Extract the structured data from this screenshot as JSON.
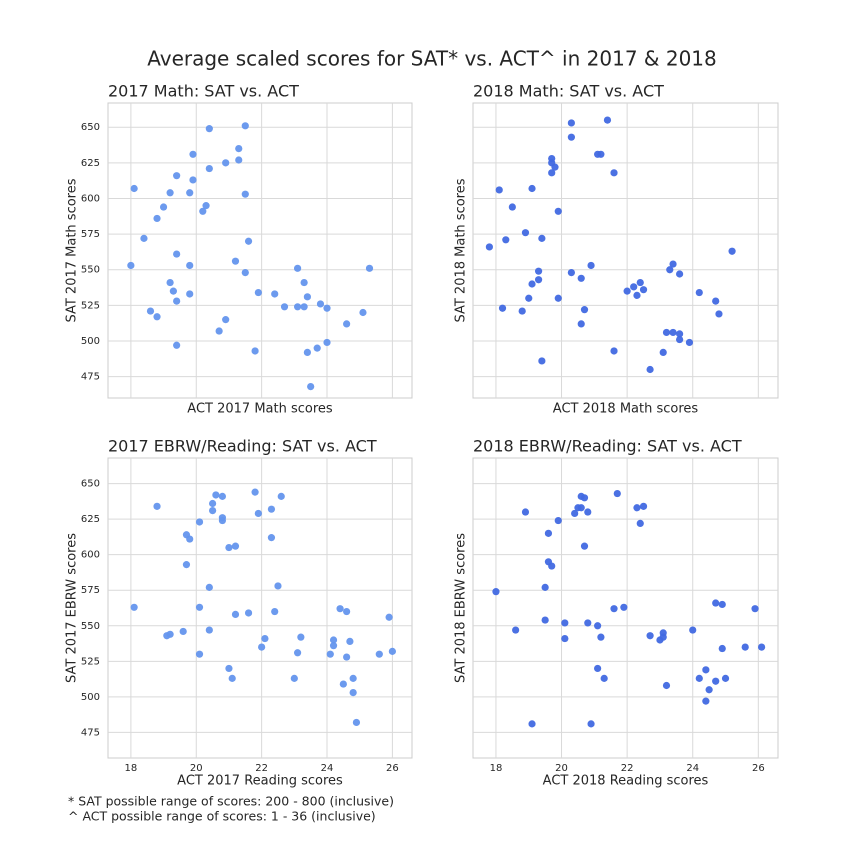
{
  "title": "Average scaled scores for SAT* vs. ACT^ in 2017 & 2018",
  "notes": [
    "* SAT possible range of scores: 200 - 800 (inclusive)",
    "^ ACT possible range of scores: 1 - 36 (inclusive)"
  ],
  "chart_data": [
    {
      "type": "scatter",
      "title": "2017 Math: SAT vs. ACT",
      "x_label": "ACT 2017 Math scores",
      "y_label": "SAT 2017 Math scores",
      "color": "#6495ed",
      "grid": true,
      "xtick_labels": false,
      "ytick_labels": true,
      "xlim": [
        17.3,
        26.6
      ],
      "ylim": [
        460,
        667
      ],
      "xticks": [
        18,
        20,
        22,
        24,
        26
      ],
      "yticks": [
        475,
        500,
        525,
        550,
        575,
        600,
        625,
        650
      ],
      "x": [
        18.0,
        18.1,
        18.4,
        18.6,
        18.8,
        18.8,
        19.0,
        19.2,
        19.2,
        19.3,
        19.4,
        19.4,
        19.4,
        19.4,
        19.8,
        19.8,
        19.8,
        19.9,
        19.9,
        20.2,
        20.3,
        20.4,
        20.4,
        20.7,
        20.9,
        20.9,
        21.2,
        21.3,
        21.3,
        21.5,
        21.5,
        21.5,
        21.6,
        21.8,
        21.9,
        22.4,
        22.7,
        23.1,
        23.1,
        23.3,
        23.3,
        23.4,
        23.4,
        23.5,
        23.7,
        23.8,
        24.0,
        24.0,
        24.6,
        25.1,
        25.3
      ],
      "values": [
        553,
        607,
        572,
        521,
        517,
        586,
        594,
        604,
        541,
        535,
        616,
        561,
        528,
        497,
        604,
        553,
        533,
        631,
        613,
        591,
        595,
        649,
        621,
        507,
        515,
        625,
        556,
        635,
        627,
        651,
        603,
        548,
        570,
        493,
        534,
        533,
        524,
        524,
        551,
        541,
        524,
        531,
        492,
        468,
        495,
        526,
        523,
        499,
        512,
        520,
        551
      ]
    },
    {
      "type": "scatter",
      "title": "2018 Math: SAT vs. ACT",
      "x_label": "ACT 2018 Math scores",
      "y_label": "SAT 2018 Math scores",
      "color": "#4169e1",
      "grid": true,
      "xtick_labels": false,
      "ytick_labels": false,
      "xlim": [
        17.3,
        26.6
      ],
      "ylim": [
        460,
        667
      ],
      "xticks": [
        18,
        20,
        22,
        24,
        26
      ],
      "yticks": [
        475,
        500,
        525,
        550,
        575,
        600,
        625,
        650
      ],
      "x": [
        17.8,
        18.1,
        18.2,
        18.3,
        18.5,
        18.8,
        18.9,
        19.0,
        19.1,
        19.1,
        19.3,
        19.3,
        19.4,
        19.4,
        19.7,
        19.7,
        19.7,
        19.8,
        19.9,
        19.9,
        20.3,
        20.3,
        20.3,
        20.6,
        20.6,
        20.7,
        20.9,
        21.1,
        21.2,
        21.4,
        21.6,
        21.6,
        22.0,
        22.2,
        22.3,
        22.5,
        22.7,
        22.4,
        23.1,
        23.2,
        23.3,
        23.4,
        23.4,
        23.6,
        23.6,
        23.6,
        23.9,
        24.2,
        24.7,
        24.8,
        25.2
      ],
      "values": [
        566,
        606,
        523,
        571,
        594,
        521,
        576,
        530,
        540,
        607,
        549,
        543,
        572,
        486,
        628,
        618,
        625,
        622,
        530,
        591,
        653,
        643,
        548,
        544,
        512,
        522,
        553,
        631,
        631,
        655,
        618,
        493,
        535,
        538,
        532,
        536,
        480,
        541,
        492,
        506,
        550,
        554,
        506,
        547,
        505,
        501,
        499,
        534,
        528,
        519,
        563
      ]
    },
    {
      "type": "scatter",
      "title": "2017 EBRW/Reading: SAT vs. ACT",
      "x_label": "ACT 2017 Reading scores",
      "y_label": "SAT 2017 EBRW scores",
      "color": "#6495ed",
      "grid": true,
      "xtick_labels": true,
      "ytick_labels": true,
      "xlim": [
        17.3,
        26.6
      ],
      "ylim": [
        457,
        668
      ],
      "xticks": [
        18,
        20,
        22,
        24,
        26
      ],
      "yticks": [
        475,
        500,
        525,
        550,
        575,
        600,
        625,
        650
      ],
      "x": [
        18.1,
        18.8,
        19.1,
        19.2,
        19.6,
        19.7,
        19.7,
        19.8,
        20.1,
        20.1,
        20.1,
        20.4,
        20.4,
        20.5,
        20.5,
        20.6,
        20.8,
        20.8,
        20.8,
        21.0,
        21.0,
        21.1,
        21.2,
        21.2,
        21.6,
        21.8,
        21.9,
        22.0,
        22.1,
        22.3,
        22.3,
        22.4,
        22.5,
        22.6,
        23.0,
        23.1,
        23.2,
        24.1,
        24.2,
        24.2,
        24.4,
        24.5,
        24.6,
        24.6,
        24.7,
        24.8,
        24.8,
        24.9,
        25.6,
        25.9,
        26.0
      ],
      "values": [
        563,
        634,
        543,
        544,
        546,
        614,
        593,
        611,
        563,
        530,
        623,
        577,
        547,
        636,
        631,
        642,
        641,
        626,
        624,
        605,
        520,
        513,
        606,
        558,
        559,
        644,
        629,
        535,
        541,
        632,
        612,
        560,
        578,
        641,
        513,
        531,
        542,
        530,
        540,
        536,
        562,
        509,
        560,
        528,
        539,
        513,
        503,
        482,
        530,
        556,
        532
      ]
    },
    {
      "type": "scatter",
      "title": "2018 EBRW/Reading: SAT vs. ACT",
      "x_label": "ACT 2018 Reading scores",
      "y_label": "SAT 2018 EBRW scores",
      "color": "#4169e1",
      "grid": true,
      "xtick_labels": true,
      "ytick_labels": false,
      "xlim": [
        17.3,
        26.6
      ],
      "ylim": [
        457,
        668
      ],
      "xticks": [
        18,
        20,
        22,
        24,
        26
      ],
      "yticks": [
        475,
        500,
        525,
        550,
        575,
        600,
        625,
        650
      ],
      "x": [
        18.0,
        18.6,
        18.9,
        19.1,
        19.5,
        19.5,
        19.6,
        19.6,
        19.7,
        19.9,
        20.1,
        20.1,
        20.4,
        20.5,
        20.6,
        20.6,
        20.7,
        20.7,
        20.8,
        20.8,
        20.9,
        21.1,
        21.1,
        21.2,
        21.3,
        21.6,
        21.7,
        21.9,
        22.3,
        22.4,
        22.5,
        22.7,
        23.0,
        23.1,
        23.1,
        23.2,
        24.0,
        24.2,
        24.4,
        24.4,
        24.5,
        24.7,
        24.7,
        24.9,
        24.9,
        25.0,
        25.6,
        25.9,
        26.1
      ],
      "values": [
        574,
        547,
        630,
        481,
        554,
        577,
        615,
        595,
        592,
        624,
        552,
        541,
        629,
        633,
        633,
        641,
        640,
        606,
        630,
        552,
        481,
        550,
        520,
        542,
        513,
        562,
        643,
        563,
        633,
        622,
        634,
        543,
        540,
        545,
        542,
        508,
        547,
        513,
        519,
        497,
        505,
        566,
        511,
        565,
        534,
        513,
        535,
        562,
        535
      ]
    }
  ]
}
